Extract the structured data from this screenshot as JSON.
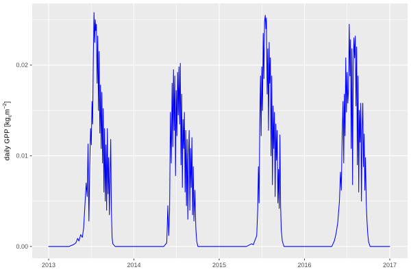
{
  "figure": {
    "kind": "ggplot-line-chart",
    "ylabel_parts": {
      "pre": "daily GPP [kg",
      "sub": "c",
      "mid": "m",
      "sup": "−2",
      "post": "]"
    }
  },
  "chart_data": {
    "type": "line",
    "title": "",
    "xlabel": "",
    "ylabel": "daily GPP [kg_c m^-2]",
    "legend": "none",
    "grid": true,
    "xlim": [
      2012.807,
      2017.209
    ],
    "ylim": [
      -0.0013,
      0.0268
    ],
    "x_ticks": {
      "values": [
        2013,
        2014,
        2015,
        2016,
        2017
      ],
      "labels": [
        "2013",
        "2014",
        "2015",
        "2016",
        "2017"
      ]
    },
    "y_ticks": {
      "values": [
        0,
        0.01,
        0.02
      ],
      "labels": [
        "0.00",
        "0.01",
        "0.02"
      ]
    },
    "x_minor": [
      2013.5,
      2014.5,
      2015.5,
      2016.5
    ],
    "y_minor": [
      0.005,
      0.015,
      0.025
    ],
    "theme": {
      "outer_bg": "#ffffff",
      "panel_bg": "#EBEBEB",
      "grid_color": "#FFFFFF",
      "tick_label_color": "#4D4D4D",
      "axis_title_color": "#000000",
      "tick_mark_color": "#333333",
      "line_color": "#0000FF"
    },
    "series": [
      {
        "name": "daily GPP",
        "color": "#0000FF",
        "points": [
          [
            2013.0,
            0
          ],
          [
            2013.06,
            0
          ],
          [
            2013.12,
            0
          ],
          [
            2013.18,
            0
          ],
          [
            2013.24,
            0
          ],
          [
            2013.29,
            0.0002
          ],
          [
            2013.32,
            0.0004
          ],
          [
            2013.34,
            0.0009
          ],
          [
            2013.355,
            0.0006
          ],
          [
            2013.375,
            0.0013
          ],
          [
            2013.395,
            0.001
          ],
          [
            2013.41,
            0.002
          ],
          [
            2013.425,
            0.0045
          ],
          [
            2013.44,
            0.007
          ],
          [
            2013.452,
            0.0055
          ],
          [
            2013.462,
            0.0113
          ],
          [
            2013.472,
            0.0028
          ],
          [
            2013.482,
            0.009
          ],
          [
            2013.492,
            0.013
          ],
          [
            2013.5,
            0.0112
          ],
          [
            2013.508,
            0.016
          ],
          [
            2013.516,
            0.0135
          ],
          [
            2013.524,
            0.021
          ],
          [
            2013.532,
            0.0258
          ],
          [
            2013.54,
            0.0225
          ],
          [
            2013.547,
            0.025
          ],
          [
            2013.553,
            0.0238
          ],
          [
            2013.56,
            0.0245
          ],
          [
            2013.568,
            0.018
          ],
          [
            2013.576,
            0.0232
          ],
          [
            2013.584,
            0.015
          ],
          [
            2013.592,
            0.0215
          ],
          [
            2013.6,
            0.0125
          ],
          [
            2013.608,
            0.0178
          ],
          [
            2013.616,
            0.0108
          ],
          [
            2013.624,
            0.017
          ],
          [
            2013.632,
            0.0092
          ],
          [
            2013.64,
            0.0152
          ],
          [
            2013.648,
            0.006
          ],
          [
            2013.656,
            0.013
          ],
          [
            2013.664,
            0.005
          ],
          [
            2013.672,
            0.0112
          ],
          [
            2013.68,
            0.004
          ],
          [
            2013.688,
            0.013
          ],
          [
            2013.696,
            0.0058
          ],
          [
            2013.704,
            0.0098
          ],
          [
            2013.712,
            0.0035
          ],
          [
            2013.72,
            0.0075
          ],
          [
            2013.728,
            0.0118
          ],
          [
            2013.736,
            0.004
          ],
          [
            2013.744,
            0.001
          ],
          [
            2013.752,
            0.0003
          ],
          [
            2013.78,
            0
          ],
          [
            2013.85,
            0
          ],
          [
            2013.95,
            0
          ],
          [
            2014.05,
            0
          ],
          [
            2014.15,
            0
          ],
          [
            2014.25,
            0
          ],
          [
            2014.35,
            0
          ],
          [
            2014.385,
            0.0004
          ],
          [
            2014.398,
            0.0045
          ],
          [
            2014.408,
            0.0012
          ],
          [
            2014.418,
            0.0038
          ],
          [
            2014.428,
            0.0148
          ],
          [
            2014.438,
            0.0092
          ],
          [
            2014.448,
            0.018
          ],
          [
            2014.456,
            0.011
          ],
          [
            2014.464,
            0.0195
          ],
          [
            2014.472,
            0.0128
          ],
          [
            2014.48,
            0.0188
          ],
          [
            2014.488,
            0.0078
          ],
          [
            2014.496,
            0.0172
          ],
          [
            2014.504,
            0.0122
          ],
          [
            2014.512,
            0.0192
          ],
          [
            2014.52,
            0.0145
          ],
          [
            2014.528,
            0.0198
          ],
          [
            2014.536,
            0.0135
          ],
          [
            2014.544,
            0.0202
          ],
          [
            2014.552,
            0.009
          ],
          [
            2014.56,
            0.0168
          ],
          [
            2014.568,
            0.0065
          ],
          [
            2014.576,
            0.014
          ],
          [
            2014.584,
            0.0108
          ],
          [
            2014.592,
            0.0148
          ],
          [
            2014.6,
            0.006
          ],
          [
            2014.608,
            0.0128
          ],
          [
            2014.616,
            0.0045
          ],
          [
            2014.624,
            0.0118
          ],
          [
            2014.632,
            0.003
          ],
          [
            2014.64,
            0.01
          ],
          [
            2014.648,
            0.0128
          ],
          [
            2014.656,
            0.004
          ],
          [
            2014.664,
            0.0108
          ],
          [
            2014.672,
            0.0065
          ],
          [
            2014.68,
            0.012
          ],
          [
            2014.688,
            0.0035
          ],
          [
            2014.696,
            0.0088
          ],
          [
            2014.704,
            0.0028
          ],
          [
            2014.715,
            0.0062
          ],
          [
            2014.726,
            0.002
          ],
          [
            2014.736,
            0.0006
          ],
          [
            2014.75,
            0
          ],
          [
            2014.82,
            0
          ],
          [
            2014.92,
            0
          ],
          [
            2015.02,
            0
          ],
          [
            2015.12,
            0
          ],
          [
            2015.22,
            0
          ],
          [
            2015.32,
            0
          ],
          [
            2015.38,
            0.0003
          ],
          [
            2015.4,
            0.0002
          ],
          [
            2015.42,
            0.0007
          ],
          [
            2015.44,
            0.0012
          ],
          [
            2015.452,
            0.0042
          ],
          [
            2015.46,
            0.0088
          ],
          [
            2015.468,
            0.0048
          ],
          [
            2015.476,
            0.0138
          ],
          [
            2015.484,
            0.0188
          ],
          [
            2015.492,
            0.0122
          ],
          [
            2015.5,
            0.0198
          ],
          [
            2015.508,
            0.015
          ],
          [
            2015.516,
            0.0235
          ],
          [
            2015.524,
            0.0185
          ],
          [
            2015.532,
            0.0248
          ],
          [
            2015.54,
            0.0255
          ],
          [
            2015.548,
            0.024
          ],
          [
            2015.554,
            0.0252
          ],
          [
            2015.562,
            0.0168
          ],
          [
            2015.57,
            0.0218
          ],
          [
            2015.578,
            0.0128
          ],
          [
            2015.586,
            0.0225
          ],
          [
            2015.592,
            0.018
          ],
          [
            2015.6,
            0.0208
          ],
          [
            2015.608,
            0.01
          ],
          [
            2015.616,
            0.0188
          ],
          [
            2015.624,
            0.0068
          ],
          [
            2015.632,
            0.0155
          ],
          [
            2015.64,
            0.0108
          ],
          [
            2015.648,
            0.0148
          ],
          [
            2015.656,
            0.0055
          ],
          [
            2015.664,
            0.0135
          ],
          [
            2015.672,
            0.0095
          ],
          [
            2015.68,
            0.0128
          ],
          [
            2015.688,
            0.0048
          ],
          [
            2015.696,
            0.0085
          ],
          [
            2015.704,
            0.0042
          ],
          [
            2015.712,
            0.0123
          ],
          [
            2015.72,
            0.0045
          ],
          [
            2015.728,
            0.0018
          ],
          [
            2015.74,
            0.0006
          ],
          [
            2015.76,
            0
          ],
          [
            2015.84,
            0
          ],
          [
            2015.94,
            0
          ],
          [
            2016.04,
            0
          ],
          [
            2016.14,
            0
          ],
          [
            2016.24,
            0
          ],
          [
            2016.32,
            0
          ],
          [
            2016.35,
            0.0006
          ],
          [
            2016.37,
            0.0014
          ],
          [
            2016.39,
            0.0026
          ],
          [
            2016.41,
            0.005
          ],
          [
            2016.422,
            0.0082
          ],
          [
            2016.432,
            0.0062
          ],
          [
            2016.442,
            0.0122
          ],
          [
            2016.452,
            0.016
          ],
          [
            2016.46,
            0.0092
          ],
          [
            2016.468,
            0.0168
          ],
          [
            2016.476,
            0.0122
          ],
          [
            2016.484,
            0.0208
          ],
          [
            2016.492,
            0.0148
          ],
          [
            2016.5,
            0.0192
          ],
          [
            2016.508,
            0.0158
          ],
          [
            2016.516,
            0.0172
          ],
          [
            2016.525,
            0.0245
          ],
          [
            2016.533,
            0.0188
          ],
          [
            2016.54,
            0.0228
          ],
          [
            2016.548,
            0.0108
          ],
          [
            2016.556,
            0.0218
          ],
          [
            2016.564,
            0.0068
          ],
          [
            2016.572,
            0.02
          ],
          [
            2016.58,
            0.023
          ],
          [
            2016.588,
            0.0208
          ],
          [
            2016.596,
            0.0232
          ],
          [
            2016.604,
            0.0155
          ],
          [
            2016.612,
            0.022
          ],
          [
            2016.62,
            0.009
          ],
          [
            2016.628,
            0.0188
          ],
          [
            2016.636,
            0.006
          ],
          [
            2016.644,
            0.015
          ],
          [
            2016.652,
            0.0115
          ],
          [
            2016.66,
            0.0158
          ],
          [
            2016.668,
            0.005
          ],
          [
            2016.676,
            0.0128
          ],
          [
            2016.684,
            0.0158
          ],
          [
            2016.692,
            0.0088
          ],
          [
            2016.7,
            0.0124
          ],
          [
            2016.708,
            0.0062
          ],
          [
            2016.716,
            0.0098
          ],
          [
            2016.724,
            0.005
          ],
          [
            2016.732,
            0.003
          ],
          [
            2016.742,
            0.0014
          ],
          [
            2016.752,
            0.0005
          ],
          [
            2016.77,
            0
          ],
          [
            2016.85,
            0
          ],
          [
            2016.93,
            0
          ],
          [
            2017.0,
            0
          ]
        ]
      }
    ]
  }
}
